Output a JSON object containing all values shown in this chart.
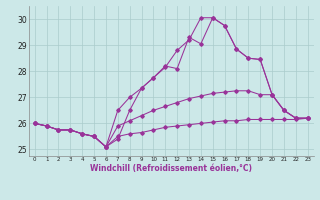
{
  "x": [
    0,
    1,
    2,
    3,
    4,
    5,
    6,
    7,
    8,
    9,
    10,
    11,
    12,
    13,
    14,
    15,
    16,
    17,
    18,
    19,
    20,
    21,
    22,
    23
  ],
  "line1": [
    26.0,
    25.9,
    25.75,
    25.75,
    25.6,
    25.5,
    25.1,
    25.4,
    26.5,
    27.35,
    27.75,
    28.2,
    28.1,
    29.3,
    29.05,
    30.05,
    29.75,
    28.85,
    28.5,
    28.45,
    27.1,
    26.5,
    26.2,
    26.2
  ],
  "line2": [
    26.0,
    25.9,
    25.75,
    25.75,
    25.6,
    25.5,
    25.1,
    26.5,
    27.0,
    27.35,
    27.75,
    28.15,
    28.8,
    29.2,
    30.05,
    30.05,
    29.75,
    28.85,
    28.5,
    28.45,
    27.1,
    26.5,
    26.2,
    26.2
  ],
  "line3": [
    26.0,
    25.9,
    25.75,
    25.75,
    25.6,
    25.5,
    25.1,
    25.9,
    26.1,
    26.3,
    26.5,
    26.65,
    26.8,
    26.95,
    27.05,
    27.15,
    27.2,
    27.25,
    27.25,
    27.1,
    27.1,
    26.5,
    26.2,
    26.2
  ],
  "line4": [
    26.0,
    25.9,
    25.75,
    25.75,
    25.6,
    25.5,
    25.1,
    25.5,
    25.6,
    25.65,
    25.75,
    25.85,
    25.9,
    25.95,
    26.0,
    26.05,
    26.1,
    26.1,
    26.15,
    26.15,
    26.15,
    26.15,
    26.15,
    26.2
  ],
  "line_color": "#993399",
  "bg_color": "#cce8e8",
  "grid_color": "#aacccc",
  "xlabel": "Windchill (Refroidissement éolien,°C)",
  "ylim": [
    24.75,
    30.5
  ],
  "xlim": [
    0,
    23
  ],
  "yticks": [
    25,
    26,
    27,
    28,
    29,
    30
  ],
  "xticks": [
    0,
    1,
    2,
    3,
    4,
    5,
    6,
    7,
    8,
    9,
    10,
    11,
    12,
    13,
    14,
    15,
    16,
    17,
    18,
    19,
    20,
    21,
    22,
    23
  ]
}
